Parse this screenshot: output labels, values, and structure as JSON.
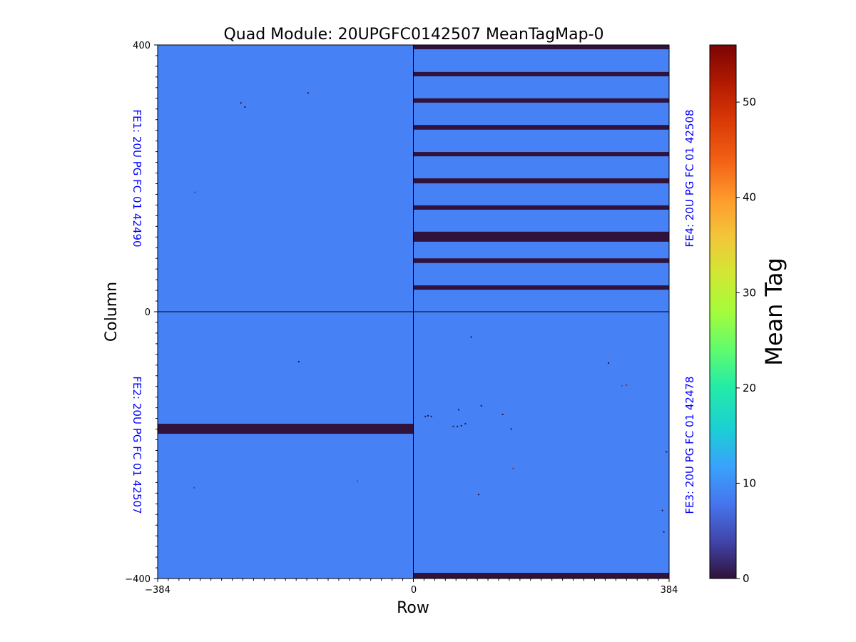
{
  "chart_data": {
    "type": "heatmap",
    "title": "Quad Module: 20UPGFC0142507 MeanTagMap-0",
    "xlabel": "Row",
    "ylabel": "Column",
    "xlim": [
      -384,
      384
    ],
    "ylim": [
      -400,
      400
    ],
    "xticks": [
      "−384",
      "0",
      "384"
    ],
    "yticks": [
      "400",
      "0",
      "−400"
    ],
    "minor_tick_step": 16,
    "colorbar": {
      "label": "Mean Tag",
      "range": [
        0,
        56
      ],
      "ticks": [
        "0",
        "10",
        "20",
        "30",
        "40",
        "50"
      ],
      "tick_values": [
        0,
        10,
        20,
        30,
        40,
        50
      ],
      "colormap": "turbo"
    },
    "background_value": 8.5,
    "frontends": [
      {
        "name": "FE1: 20U PG FC 01 42490",
        "x": [
          -384,
          0
        ],
        "y": [
          0,
          400
        ],
        "label_side": "left"
      },
      {
        "name": "FE2: 20U PG FC 01 42507",
        "x": [
          -384,
          0
        ],
        "y": [
          -400,
          0
        ],
        "label_side": "left"
      },
      {
        "name": "FE3: 20U PG FC 01 42478",
        "x": [
          0,
          384
        ],
        "y": [
          -400,
          0
        ],
        "label_side": "right"
      },
      {
        "name": "FE4: 20U PG FC 01 42508",
        "x": [
          0,
          384
        ],
        "y": [
          0,
          400
        ],
        "label_side": "right"
      }
    ],
    "bands": [
      {
        "x": [
          0,
          384
        ],
        "y": [
          393.5,
          400
        ],
        "value": 0
      },
      {
        "x": [
          0,
          384
        ],
        "y": [
          353,
          359.5
        ],
        "value": 0
      },
      {
        "x": [
          0,
          384
        ],
        "y": [
          313.5,
          320
        ],
        "value": 0
      },
      {
        "x": [
          0,
          384
        ],
        "y": [
          273,
          280
        ],
        "value": 0
      },
      {
        "x": [
          0,
          384
        ],
        "y": [
          233,
          239.5
        ],
        "value": 0
      },
      {
        "x": [
          0,
          384
        ],
        "y": [
          192.5,
          200
        ],
        "value": 0
      },
      {
        "x": [
          0,
          384
        ],
        "y": [
          153,
          159.5
        ],
        "value": 0
      },
      {
        "x": [
          0,
          384
        ],
        "y": [
          105,
          120
        ],
        "value": 0
      },
      {
        "x": [
          0,
          384
        ],
        "y": [
          73,
          80
        ],
        "value": 0
      },
      {
        "x": [
          0,
          384
        ],
        "y": [
          33,
          39.5
        ],
        "value": 0
      },
      {
        "x": [
          0,
          384
        ],
        "y": [
          -400,
          -391.5
        ],
        "value": 0
      },
      {
        "x": [
          -384,
          0
        ],
        "y": [
          -183,
          -168
        ],
        "value": 0
      }
    ],
    "pixels": [
      {
        "x": -158,
        "y": 328,
        "value": 0
      },
      {
        "x": -259,
        "y": 313,
        "value": 0
      },
      {
        "x": -253,
        "y": 307,
        "value": 1
      },
      {
        "x": -328,
        "y": 179,
        "value": 2
      },
      {
        "x": -172,
        "y": -75,
        "value": 1
      },
      {
        "x": -329,
        "y": -264,
        "value": 3
      },
      {
        "x": -84,
        "y": -254,
        "value": 2
      },
      {
        "x": 87,
        "y": -38,
        "value": 1
      },
      {
        "x": 147,
        "y": -176,
        "value": 0
      },
      {
        "x": 102,
        "y": -141,
        "value": 1
      },
      {
        "x": 68,
        "y": -147,
        "value": 1
      },
      {
        "x": 134,
        "y": -154,
        "value": 0
      },
      {
        "x": 18,
        "y": -157,
        "value": 0
      },
      {
        "x": 22,
        "y": -156,
        "value": 0
      },
      {
        "x": 27,
        "y": -157,
        "value": 0
      },
      {
        "x": 60,
        "y": -172,
        "value": 0
      },
      {
        "x": 66,
        "y": -172,
        "value": 0
      },
      {
        "x": 72,
        "y": -171,
        "value": 0
      },
      {
        "x": 78,
        "y": -168,
        "value": 0
      },
      {
        "x": 150,
        "y": -235,
        "value": 50
      },
      {
        "x": 98,
        "y": -274,
        "value": 0
      },
      {
        "x": 293,
        "y": -77,
        "value": 0
      },
      {
        "x": 313,
        "y": -111,
        "value": 2
      },
      {
        "x": 320,
        "y": -110,
        "value": 50
      },
      {
        "x": 374,
        "y": -298,
        "value": 0
      },
      {
        "x": 376,
        "y": -330,
        "value": 0
      },
      {
        "x": 380,
        "y": -210,
        "value": 1
      }
    ]
  }
}
